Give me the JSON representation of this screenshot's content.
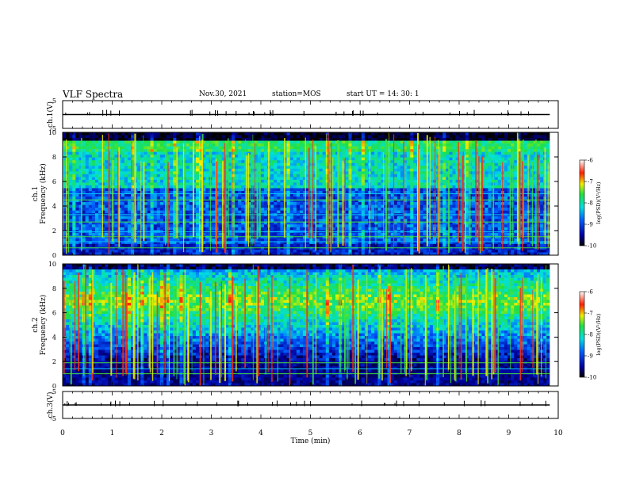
{
  "header": {
    "title": "VLF Spectra",
    "date": "Nov.30, 2021",
    "station": "station=MOS",
    "start": "start  UT  =   14: 30: 1"
  },
  "chart_data": [
    {
      "type": "line",
      "name": "ch.1 waveform",
      "ylabel": "ch.1(V)",
      "ylim": [
        -5,
        5
      ],
      "y_ticks": [
        "5",
        "-5"
      ],
      "series": [
        {
          "values": [
            0,
            0,
            0,
            0,
            0,
            0,
            0,
            0,
            0,
            0,
            0
          ]
        }
      ],
      "x": [
        0,
        1,
        2,
        3,
        4,
        5,
        6,
        7,
        8,
        9,
        9.83
      ]
    },
    {
      "type": "heatmap",
      "name": "ch.1 spectrogram",
      "ylabel": "ch.1\nFrequency (kHz)",
      "ylim": [
        0,
        10
      ],
      "y_ticks": [
        "0",
        "2",
        "4",
        "6",
        "8",
        "10"
      ],
      "xlim": [
        0,
        10
      ],
      "data_end_min": 9.83,
      "colorbar": {
        "label": "log(PSD)(V²/Hz)",
        "range": [
          -10,
          -6
        ],
        "ticks": [
          "-6",
          "-7",
          "-8",
          "-9",
          "-10"
        ]
      },
      "band_khz": [
        1.0,
        9.3
      ],
      "persistent_lines_khz": [
        0.6,
        1.1,
        1.5,
        1.9,
        2.7,
        3.3,
        4.5,
        5.0
      ]
    },
    {
      "type": "heatmap",
      "name": "ch.2 spectrogram",
      "ylabel": "ch.2\nFrequency (kHz)",
      "ylim": [
        0,
        10
      ],
      "y_ticks": [
        "0",
        "2",
        "4",
        "6",
        "8",
        "10"
      ],
      "xlim": [
        0,
        10
      ],
      "data_end_min": 9.83,
      "colorbar": {
        "label": "log(PSD)(V²/Hz)",
        "range": [
          -10,
          -6
        ],
        "ticks": [
          "-6",
          "-7",
          "-8",
          "-9",
          "-10"
        ]
      },
      "band_khz": [
        2.0,
        9.6
      ],
      "peak_khz": 7.0,
      "persistent_lines_khz": [
        1.0,
        1.4,
        1.9
      ]
    },
    {
      "type": "line",
      "name": "ch.3 waveform",
      "ylabel": "ch.3(V)",
      "ylim": [
        -5,
        5
      ],
      "y_ticks": [
        "5",
        "-5"
      ],
      "series": [
        {
          "values": [
            0,
            0,
            0,
            0,
            0,
            0,
            0,
            0,
            0,
            0,
            0
          ]
        }
      ],
      "x": [
        0,
        1,
        2,
        3,
        4,
        5,
        6,
        7,
        8,
        9,
        9.83
      ]
    }
  ],
  "x_axis": {
    "label": "Time  (min)",
    "ticks": [
      "0",
      "1",
      "2",
      "3",
      "4",
      "5",
      "6",
      "7",
      "8",
      "9",
      "10"
    ]
  }
}
